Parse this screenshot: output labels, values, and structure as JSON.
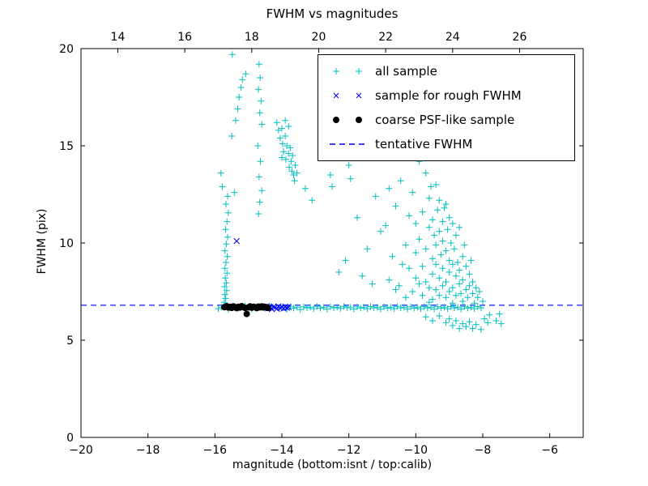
{
  "chart_data": {
    "type": "scatter",
    "title": "FWHM vs magnitudes",
    "xlabel": "magnitude (bottom:isnt / top:calib)",
    "ylabel": "FWHM (pix)",
    "xlim": [
      -20,
      -5
    ],
    "ylim": [
      0,
      20
    ],
    "x_ticks_bottom": [
      -20,
      -18,
      -16,
      -14,
      -12,
      -10,
      -8,
      -6
    ],
    "x_ticks_top": [
      14,
      16,
      18,
      20,
      22,
      24,
      26
    ],
    "top_axis_offset": 32.9,
    "y_ticks": [
      0,
      5,
      10,
      15,
      20
    ],
    "grid": false,
    "legend_position": "upper right",
    "series": [
      {
        "name": "all sample",
        "marker": "plus",
        "color": "#00bfbf",
        "points": [
          [
            -15.9,
            6.62
          ],
          [
            -15.8,
            6.7
          ],
          [
            -15.6,
            6.58
          ],
          [
            -15.5,
            6.72
          ],
          [
            -15.3,
            6.65
          ],
          [
            -15.1,
            6.75
          ],
          [
            -14.9,
            6.6
          ],
          [
            -14.7,
            6.7
          ],
          [
            -14.5,
            6.64
          ],
          [
            -14.3,
            6.73
          ],
          [
            -14.1,
            6.66
          ],
          [
            -13.95,
            6.7
          ],
          [
            -13.85,
            6.6
          ],
          [
            -13.75,
            6.74
          ],
          [
            -13.65,
            6.65
          ],
          [
            -13.55,
            6.7
          ],
          [
            -13.45,
            6.58
          ],
          [
            -13.35,
            6.72
          ],
          [
            -13.25,
            6.66
          ],
          [
            -13.15,
            6.7
          ],
          [
            -13.05,
            6.62
          ],
          [
            -12.95,
            6.74
          ],
          [
            -12.85,
            6.65
          ],
          [
            -12.75,
            6.7
          ],
          [
            -12.65,
            6.6
          ],
          [
            -12.55,
            6.72
          ],
          [
            -12.45,
            6.66
          ],
          [
            -12.35,
            6.7
          ],
          [
            -12.25,
            6.63
          ],
          [
            -12.15,
            6.74
          ],
          [
            -12.05,
            6.67
          ],
          [
            -11.95,
            6.7
          ],
          [
            -11.85,
            6.6
          ],
          [
            -11.75,
            6.72
          ],
          [
            -11.65,
            6.65
          ],
          [
            -11.55,
            6.7
          ],
          [
            -11.45,
            6.62
          ],
          [
            -11.35,
            6.73
          ],
          [
            -11.25,
            6.66
          ],
          [
            -11.15,
            6.7
          ],
          [
            -11.05,
            6.6
          ],
          [
            -10.95,
            6.72
          ],
          [
            -10.85,
            6.65
          ],
          [
            -10.75,
            6.7
          ],
          [
            -10.65,
            6.62
          ],
          [
            -10.55,
            6.74
          ],
          [
            -10.45,
            6.66
          ],
          [
            -10.35,
            6.7
          ],
          [
            -10.25,
            6.6
          ],
          [
            -10.15,
            6.72
          ],
          [
            -10.05,
            6.65
          ],
          [
            -9.95,
            6.7
          ],
          [
            -9.85,
            6.62
          ],
          [
            -9.75,
            6.73
          ],
          [
            -9.65,
            6.66
          ],
          [
            -9.55,
            6.7
          ],
          [
            -9.45,
            6.6
          ],
          [
            -9.35,
            6.72
          ],
          [
            -9.25,
            6.65
          ],
          [
            -9.15,
            6.7
          ],
          [
            -9.05,
            6.62
          ],
          [
            -8.95,
            6.73
          ],
          [
            -8.85,
            6.66
          ],
          [
            -8.75,
            6.7
          ],
          [
            -8.65,
            6.6
          ],
          [
            -8.55,
            6.72
          ],
          [
            -8.45,
            6.65
          ],
          [
            -8.35,
            6.7
          ],
          [
            -8.25,
            6.62
          ],
          [
            -8.15,
            6.73
          ],
          [
            -8.05,
            6.66
          ],
          [
            -15.72,
            6.95
          ],
          [
            -15.68,
            7.15
          ],
          [
            -15.7,
            7.35
          ],
          [
            -15.65,
            7.55
          ],
          [
            -15.71,
            7.75
          ],
          [
            -15.66,
            7.95
          ],
          [
            -15.69,
            8.2
          ],
          [
            -15.64,
            8.45
          ],
          [
            -15.7,
            8.7
          ],
          [
            -15.67,
            9.0
          ],
          [
            -15.63,
            9.3
          ],
          [
            -15.7,
            9.6
          ],
          [
            -15.66,
            9.95
          ],
          [
            -15.62,
            10.3
          ],
          [
            -15.68,
            10.7
          ],
          [
            -15.64,
            11.1
          ],
          [
            -15.6,
            11.55
          ],
          [
            -15.67,
            12.0
          ],
          [
            -15.62,
            12.4
          ],
          [
            -15.82,
            13.6
          ],
          [
            -15.78,
            12.9
          ],
          [
            -15.5,
            15.5
          ],
          [
            -15.48,
            19.7
          ],
          [
            -15.38,
            16.3
          ],
          [
            -15.32,
            16.9
          ],
          [
            -15.28,
            17.5
          ],
          [
            -15.22,
            18.0
          ],
          [
            -15.18,
            18.4
          ],
          [
            -15.42,
            12.6
          ],
          [
            -15.08,
            18.7
          ],
          [
            -14.68,
            19.2
          ],
          [
            -14.65,
            18.5
          ],
          [
            -14.7,
            17.9
          ],
          [
            -14.62,
            17.3
          ],
          [
            -14.66,
            16.7
          ],
          [
            -14.6,
            16.1
          ],
          [
            -14.72,
            15.0
          ],
          [
            -14.64,
            14.2
          ],
          [
            -14.68,
            13.4
          ],
          [
            -14.6,
            12.7
          ],
          [
            -14.66,
            12.1
          ],
          [
            -14.7,
            11.5
          ],
          [
            -14.15,
            16.2
          ],
          [
            -14.1,
            15.8
          ],
          [
            -14.05,
            15.4
          ],
          [
            -14.0,
            15.9
          ],
          [
            -13.98,
            15.1
          ],
          [
            -13.95,
            14.7
          ],
          [
            -13.9,
            15.5
          ],
          [
            -13.88,
            14.3
          ],
          [
            -13.85,
            15.0
          ],
          [
            -13.8,
            14.6
          ],
          [
            -13.78,
            13.9
          ],
          [
            -13.75,
            14.9
          ],
          [
            -13.72,
            14.2
          ],
          [
            -13.7,
            13.7
          ],
          [
            -13.68,
            14.5
          ],
          [
            -13.65,
            13.5
          ],
          [
            -13.6,
            14.0
          ],
          [
            -13.62,
            13.2
          ],
          [
            -13.8,
            16.0
          ],
          [
            -13.9,
            16.3
          ],
          [
            -14.0,
            14.4
          ],
          [
            -13.55,
            13.6
          ],
          [
            -13.3,
            12.8
          ],
          [
            -13.1,
            12.2
          ],
          [
            -12.55,
            13.5
          ],
          [
            -12.5,
            12.9
          ],
          [
            -12.0,
            14.0
          ],
          [
            -11.95,
            13.3
          ],
          [
            -12.3,
            8.5
          ],
          [
            -12.1,
            9.1
          ],
          [
            -11.75,
            11.3
          ],
          [
            -11.6,
            8.3
          ],
          [
            -11.45,
            9.7
          ],
          [
            -11.3,
            7.9
          ],
          [
            -11.2,
            12.4
          ],
          [
            -11.05,
            10.6
          ],
          [
            -10.9,
            10.9
          ],
          [
            -10.8,
            8.1
          ],
          [
            -10.8,
            12.8
          ],
          [
            -10.7,
            9.3
          ],
          [
            -10.6,
            11.9
          ],
          [
            -10.6,
            7.6
          ],
          [
            -10.5,
            7.8
          ],
          [
            -10.45,
            13.2
          ],
          [
            -10.4,
            8.9
          ],
          [
            -10.3,
            9.9
          ],
          [
            -10.3,
            7.2
          ],
          [
            -10.2,
            8.7
          ],
          [
            -10.2,
            11.4
          ],
          [
            -10.1,
            12.6
          ],
          [
            -10.1,
            7.5
          ],
          [
            -10.0,
            9.5
          ],
          [
            -10.0,
            8.2
          ],
          [
            -10.0,
            11.0
          ],
          [
            -9.9,
            14.2
          ],
          [
            -9.9,
            7.9
          ],
          [
            -9.9,
            10.2
          ],
          [
            -9.8,
            8.8
          ],
          [
            -9.8,
            11.6
          ],
          [
            -9.8,
            7.3
          ],
          [
            -9.7,
            13.6
          ],
          [
            -9.7,
            9.7
          ],
          [
            -9.7,
            8.0
          ],
          [
            -9.6,
            10.8
          ],
          [
            -9.6,
            7.7
          ],
          [
            -9.6,
            12.3
          ],
          [
            -9.6,
            6.95
          ],
          [
            -9.55,
            12.9
          ],
          [
            -9.5,
            9.2
          ],
          [
            -9.5,
            8.4
          ],
          [
            -9.5,
            11.2
          ],
          [
            -9.5,
            7.1
          ],
          [
            -9.45,
            10.4
          ],
          [
            -9.4,
            13.0
          ],
          [
            -9.4,
            8.9
          ],
          [
            -9.4,
            7.6
          ],
          [
            -9.4,
            9.9
          ],
          [
            -9.35,
            11.7
          ],
          [
            -9.3,
            12.2
          ],
          [
            -9.3,
            8.2
          ],
          [
            -9.3,
            10.6
          ],
          [
            -9.3,
            7.3
          ],
          [
            -9.25,
            9.4
          ],
          [
            -9.2,
            11.1
          ],
          [
            -9.2,
            8.7
          ],
          [
            -9.2,
            7.8
          ],
          [
            -9.2,
            10.1
          ],
          [
            -9.15,
            11.8
          ],
          [
            -9.1,
            9.6
          ],
          [
            -9.1,
            8.0
          ],
          [
            -9.1,
            12.0
          ],
          [
            -9.1,
            7.2
          ],
          [
            -9.05,
            10.7
          ],
          [
            -9.0,
            8.5
          ],
          [
            -9.0,
            11.3
          ],
          [
            -9.0,
            7.5
          ],
          [
            -9.0,
            9.1
          ],
          [
            -8.95,
            10.0
          ],
          [
            -8.9,
            8.9
          ],
          [
            -8.9,
            7.7
          ],
          [
            -8.9,
            11.0
          ],
          [
            -8.9,
            6.9
          ],
          [
            -8.85,
            9.7
          ],
          [
            -8.8,
            8.3
          ],
          [
            -8.8,
            10.4
          ],
          [
            -8.8,
            7.3
          ],
          [
            -8.75,
            9.0
          ],
          [
            -8.7,
            7.9
          ],
          [
            -8.7,
            10.8
          ],
          [
            -8.7,
            8.6
          ],
          [
            -8.65,
            7.4
          ],
          [
            -8.6,
            9.3
          ],
          [
            -8.6,
            8.1
          ],
          [
            -8.6,
            7.0
          ],
          [
            -8.55,
            9.9
          ],
          [
            -8.5,
            7.6
          ],
          [
            -8.5,
            8.8
          ],
          [
            -8.45,
            7.2
          ],
          [
            -8.4,
            8.4
          ],
          [
            -8.4,
            7.8
          ],
          [
            -8.35,
            9.1
          ],
          [
            -8.3,
            7.4
          ],
          [
            -8.3,
            8.0
          ],
          [
            -8.25,
            6.9
          ],
          [
            -8.2,
            7.7
          ],
          [
            -8.15,
            7.2
          ],
          [
            -8.1,
            7.5
          ],
          [
            -8.0,
            7.0
          ],
          [
            -9.7,
            6.2
          ],
          [
            -9.5,
            6.0
          ],
          [
            -9.3,
            6.25
          ],
          [
            -9.1,
            5.9
          ],
          [
            -9.0,
            6.1
          ],
          [
            -8.9,
            5.75
          ],
          [
            -8.8,
            6.0
          ],
          [
            -8.7,
            5.6
          ],
          [
            -8.6,
            5.85
          ],
          [
            -8.5,
            5.7
          ],
          [
            -8.4,
            5.95
          ],
          [
            -8.3,
            5.6
          ],
          [
            -8.2,
            5.8
          ],
          [
            -8.05,
            5.55
          ],
          [
            -7.95,
            6.1
          ],
          [
            -7.85,
            5.9
          ],
          [
            -7.8,
            6.3
          ],
          [
            -7.6,
            6.0
          ],
          [
            -7.5,
            6.35
          ],
          [
            -7.45,
            5.85
          ]
        ]
      },
      {
        "name": "sample for rough FWHM",
        "marker": "x",
        "color": "#0000ff",
        "points": [
          [
            -15.35,
            10.1
          ],
          [
            -14.45,
            6.75
          ],
          [
            -14.4,
            6.65
          ],
          [
            -14.35,
            6.7
          ],
          [
            -14.3,
            6.6
          ],
          [
            -14.25,
            6.72
          ],
          [
            -14.2,
            6.68
          ],
          [
            -14.15,
            6.62
          ],
          [
            -14.1,
            6.74
          ],
          [
            -14.05,
            6.66
          ],
          [
            -14.0,
            6.7
          ],
          [
            -13.95,
            6.63
          ],
          [
            -13.9,
            6.72
          ],
          [
            -13.85,
            6.67
          ],
          [
            -13.8,
            6.7
          ]
        ]
      },
      {
        "name": "coarse PSF-like sample",
        "marker": "dot",
        "color": "#000000",
        "points": [
          [
            -15.72,
            6.7
          ],
          [
            -15.65,
            6.75
          ],
          [
            -15.6,
            6.68
          ],
          [
            -15.55,
            6.72
          ],
          [
            -15.5,
            6.66
          ],
          [
            -15.45,
            6.74
          ],
          [
            -15.4,
            6.7
          ],
          [
            -15.35,
            6.65
          ],
          [
            -15.3,
            6.72
          ],
          [
            -15.25,
            6.68
          ],
          [
            -15.2,
            6.75
          ],
          [
            -15.15,
            6.7
          ],
          [
            -15.1,
            6.66
          ],
          [
            -15.05,
            6.35
          ],
          [
            -15.0,
            6.69
          ],
          [
            -14.95,
            6.74
          ],
          [
            -14.9,
            6.67
          ],
          [
            -14.85,
            6.72
          ],
          [
            -14.8,
            6.7
          ],
          [
            -14.75,
            6.65
          ],
          [
            -14.7,
            6.73
          ],
          [
            -14.65,
            6.69
          ],
          [
            -14.6,
            6.74
          ],
          [
            -14.55,
            6.68
          ],
          [
            -14.5,
            6.71
          ],
          [
            -14.45,
            6.7
          ],
          [
            -14.42,
            6.66
          ]
        ]
      },
      {
        "name": "tentative FWHM",
        "type": "hline",
        "linestyle": "dashed",
        "color": "#0000ff",
        "y": 6.8
      }
    ]
  }
}
